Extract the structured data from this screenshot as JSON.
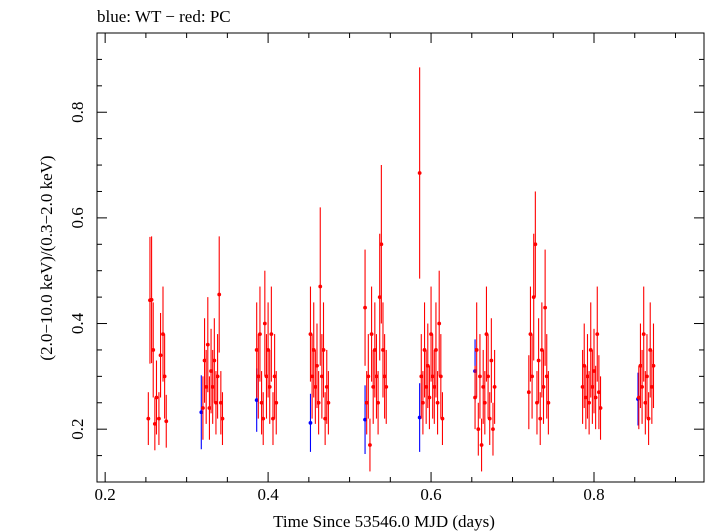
{
  "chart_data": {
    "type": "scatter",
    "title": "blue: WT − red: PC",
    "xlabel": "Time Since 53546.0 MJD (days)",
    "ylabel": "(2.0−10.0 keV)/(0.3−2.0 keV)",
    "xlim": [
      0.19,
      0.935
    ],
    "ylim": [
      0.1,
      0.95
    ],
    "xticks": [
      0.2,
      0.4,
      0.6,
      0.8
    ],
    "xtick_labels": [
      "0.2",
      "0.4",
      "0.6",
      "0.8"
    ],
    "yticks": [
      0.2,
      0.4,
      0.6,
      0.8
    ],
    "ytick_labels": [
      "0.2",
      "0.4",
      "0.6",
      "0.8"
    ],
    "x_minor_step": 0.05,
    "y_minor_step": 0.05,
    "grid": false,
    "series": [
      {
        "color": "#0000ff",
        "points": [
          {
            "x": 0.318,
            "y": 0.232,
            "err": 0.07
          },
          {
            "x": 0.386,
            "y": 0.255,
            "err": 0.06
          },
          {
            "x": 0.452,
            "y": 0.212,
            "err": 0.055
          },
          {
            "x": 0.519,
            "y": 0.218,
            "err": 0.065
          },
          {
            "x": 0.586,
            "y": 0.222,
            "err": 0.065
          },
          {
            "x": 0.654,
            "y": 0.31,
            "err": 0.06
          },
          {
            "x": 0.854,
            "y": 0.257,
            "err": 0.05
          }
        ]
      },
      {
        "color": "#ff0000",
        "points": [
          {
            "x": 0.253,
            "y": 0.22,
            "err": 0.05
          },
          {
            "x": 0.255,
            "y": 0.444,
            "err": 0.12
          },
          {
            "x": 0.257,
            "y": 0.445,
            "err": 0.12
          },
          {
            "x": 0.259,
            "y": 0.35,
            "err": 0.09
          },
          {
            "x": 0.261,
            "y": 0.21,
            "err": 0.05
          },
          {
            "x": 0.263,
            "y": 0.26,
            "err": 0.07
          },
          {
            "x": 0.266,
            "y": 0.22,
            "err": 0.05
          },
          {
            "x": 0.268,
            "y": 0.34,
            "err": 0.08
          },
          {
            "x": 0.271,
            "y": 0.38,
            "err": 0.09
          },
          {
            "x": 0.273,
            "y": 0.3,
            "err": 0.08
          },
          {
            "x": 0.275,
            "y": 0.215,
            "err": 0.05
          },
          {
            "x": 0.32,
            "y": 0.24,
            "err": 0.06
          },
          {
            "x": 0.322,
            "y": 0.33,
            "err": 0.08
          },
          {
            "x": 0.324,
            "y": 0.28,
            "err": 0.07
          },
          {
            "x": 0.326,
            "y": 0.36,
            "err": 0.09
          },
          {
            "x": 0.328,
            "y": 0.24,
            "err": 0.06
          },
          {
            "x": 0.33,
            "y": 0.31,
            "err": 0.08
          },
          {
            "x": 0.332,
            "y": 0.28,
            "err": 0.07
          },
          {
            "x": 0.334,
            "y": 0.33,
            "err": 0.08
          },
          {
            "x": 0.336,
            "y": 0.25,
            "err": 0.06
          },
          {
            "x": 0.338,
            "y": 0.3,
            "err": 0.08
          },
          {
            "x": 0.34,
            "y": 0.455,
            "err": 0.11
          },
          {
            "x": 0.342,
            "y": 0.25,
            "err": 0.06
          },
          {
            "x": 0.344,
            "y": 0.22,
            "err": 0.05
          },
          {
            "x": 0.386,
            "y": 0.35,
            "err": 0.09
          },
          {
            "x": 0.388,
            "y": 0.3,
            "err": 0.08
          },
          {
            "x": 0.39,
            "y": 0.38,
            "err": 0.09
          },
          {
            "x": 0.392,
            "y": 0.25,
            "err": 0.06
          },
          {
            "x": 0.394,
            "y": 0.22,
            "err": 0.05
          },
          {
            "x": 0.396,
            "y": 0.4,
            "err": 0.1
          },
          {
            "x": 0.398,
            "y": 0.3,
            "err": 0.08
          },
          {
            "x": 0.4,
            "y": 0.35,
            "err": 0.09
          },
          {
            "x": 0.402,
            "y": 0.28,
            "err": 0.07
          },
          {
            "x": 0.404,
            "y": 0.38,
            "err": 0.09
          },
          {
            "x": 0.406,
            "y": 0.22,
            "err": 0.05
          },
          {
            "x": 0.408,
            "y": 0.3,
            "err": 0.08
          },
          {
            "x": 0.41,
            "y": 0.25,
            "err": 0.06
          },
          {
            "x": 0.452,
            "y": 0.38,
            "err": 0.09
          },
          {
            "x": 0.454,
            "y": 0.3,
            "err": 0.08
          },
          {
            "x": 0.456,
            "y": 0.35,
            "err": 0.09
          },
          {
            "x": 0.458,
            "y": 0.28,
            "err": 0.07
          },
          {
            "x": 0.46,
            "y": 0.32,
            "err": 0.08
          },
          {
            "x": 0.462,
            "y": 0.25,
            "err": 0.06
          },
          {
            "x": 0.464,
            "y": 0.47,
            "err": 0.15
          },
          {
            "x": 0.466,
            "y": 0.3,
            "err": 0.08
          },
          {
            "x": 0.468,
            "y": 0.35,
            "err": 0.09
          },
          {
            "x": 0.47,
            "y": 0.22,
            "err": 0.05
          },
          {
            "x": 0.472,
            "y": 0.28,
            "err": 0.07
          },
          {
            "x": 0.474,
            "y": 0.25,
            "err": 0.06
          },
          {
            "x": 0.519,
            "y": 0.43,
            "err": 0.11
          },
          {
            "x": 0.521,
            "y": 0.25,
            "err": 0.06
          },
          {
            "x": 0.523,
            "y": 0.3,
            "err": 0.08
          },
          {
            "x": 0.525,
            "y": 0.17,
            "err": 0.05
          },
          {
            "x": 0.527,
            "y": 0.38,
            "err": 0.09
          },
          {
            "x": 0.529,
            "y": 0.28,
            "err": 0.07
          },
          {
            "x": 0.531,
            "y": 0.35,
            "err": 0.09
          },
          {
            "x": 0.533,
            "y": 0.3,
            "err": 0.08
          },
          {
            "x": 0.535,
            "y": 0.25,
            "err": 0.06
          },
          {
            "x": 0.537,
            "y": 0.45,
            "err": 0.12
          },
          {
            "x": 0.539,
            "y": 0.55,
            "err": 0.15
          },
          {
            "x": 0.541,
            "y": 0.35,
            "err": 0.09
          },
          {
            "x": 0.543,
            "y": 0.3,
            "err": 0.08
          },
          {
            "x": 0.545,
            "y": 0.28,
            "err": 0.07
          },
          {
            "x": 0.586,
            "y": 0.685,
            "err": 0.2
          },
          {
            "x": 0.588,
            "y": 0.3,
            "err": 0.08
          },
          {
            "x": 0.59,
            "y": 0.25,
            "err": 0.06
          },
          {
            "x": 0.592,
            "y": 0.35,
            "err": 0.09
          },
          {
            "x": 0.594,
            "y": 0.28,
            "err": 0.07
          },
          {
            "x": 0.596,
            "y": 0.32,
            "err": 0.08
          },
          {
            "x": 0.598,
            "y": 0.26,
            "err": 0.06
          },
          {
            "x": 0.6,
            "y": 0.38,
            "err": 0.09
          },
          {
            "x": 0.602,
            "y": 0.3,
            "err": 0.08
          },
          {
            "x": 0.604,
            "y": 0.28,
            "err": 0.07
          },
          {
            "x": 0.606,
            "y": 0.35,
            "err": 0.09
          },
          {
            "x": 0.608,
            "y": 0.25,
            "err": 0.06
          },
          {
            "x": 0.61,
            "y": 0.4,
            "err": 0.1
          },
          {
            "x": 0.612,
            "y": 0.3,
            "err": 0.08
          },
          {
            "x": 0.614,
            "y": 0.22,
            "err": 0.05
          },
          {
            "x": 0.654,
            "y": 0.26,
            "err": 0.06
          },
          {
            "x": 0.656,
            "y": 0.35,
            "err": 0.09
          },
          {
            "x": 0.658,
            "y": 0.2,
            "err": 0.05
          },
          {
            "x": 0.66,
            "y": 0.3,
            "err": 0.08
          },
          {
            "x": 0.662,
            "y": 0.17,
            "err": 0.05
          },
          {
            "x": 0.664,
            "y": 0.28,
            "err": 0.07
          },
          {
            "x": 0.666,
            "y": 0.25,
            "err": 0.06
          },
          {
            "x": 0.668,
            "y": 0.38,
            "err": 0.09
          },
          {
            "x": 0.67,
            "y": 0.3,
            "err": 0.08
          },
          {
            "x": 0.672,
            "y": 0.22,
            "err": 0.05
          },
          {
            "x": 0.674,
            "y": 0.33,
            "err": 0.08
          },
          {
            "x": 0.676,
            "y": 0.2,
            "err": 0.05
          },
          {
            "x": 0.678,
            "y": 0.28,
            "err": 0.07
          },
          {
            "x": 0.72,
            "y": 0.27,
            "err": 0.07
          },
          {
            "x": 0.722,
            "y": 0.38,
            "err": 0.09
          },
          {
            "x": 0.724,
            "y": 0.3,
            "err": 0.08
          },
          {
            "x": 0.726,
            "y": 0.45,
            "err": 0.12
          },
          {
            "x": 0.728,
            "y": 0.55,
            "err": 0.1
          },
          {
            "x": 0.73,
            "y": 0.25,
            "err": 0.06
          },
          {
            "x": 0.732,
            "y": 0.33,
            "err": 0.08
          },
          {
            "x": 0.734,
            "y": 0.22,
            "err": 0.05
          },
          {
            "x": 0.736,
            "y": 0.35,
            "err": 0.09
          },
          {
            "x": 0.738,
            "y": 0.28,
            "err": 0.07
          },
          {
            "x": 0.74,
            "y": 0.43,
            "err": 0.11
          },
          {
            "x": 0.742,
            "y": 0.3,
            "err": 0.08
          },
          {
            "x": 0.744,
            "y": 0.25,
            "err": 0.06
          },
          {
            "x": 0.786,
            "y": 0.28,
            "err": 0.07
          },
          {
            "x": 0.788,
            "y": 0.32,
            "err": 0.08
          },
          {
            "x": 0.79,
            "y": 0.26,
            "err": 0.06
          },
          {
            "x": 0.792,
            "y": 0.3,
            "err": 0.08
          },
          {
            "x": 0.794,
            "y": 0.25,
            "err": 0.06
          },
          {
            "x": 0.796,
            "y": 0.35,
            "err": 0.09
          },
          {
            "x": 0.798,
            "y": 0.28,
            "err": 0.07
          },
          {
            "x": 0.8,
            "y": 0.31,
            "err": 0.08
          },
          {
            "x": 0.802,
            "y": 0.26,
            "err": 0.06
          },
          {
            "x": 0.804,
            "y": 0.38,
            "err": 0.09
          },
          {
            "x": 0.806,
            "y": 0.27,
            "err": 0.07
          },
          {
            "x": 0.808,
            "y": 0.24,
            "err": 0.06
          },
          {
            "x": 0.855,
            "y": 0.26,
            "err": 0.06
          },
          {
            "x": 0.857,
            "y": 0.32,
            "err": 0.08
          },
          {
            "x": 0.859,
            "y": 0.28,
            "err": 0.07
          },
          {
            "x": 0.861,
            "y": 0.38,
            "err": 0.09
          },
          {
            "x": 0.863,
            "y": 0.25,
            "err": 0.06
          },
          {
            "x": 0.865,
            "y": 0.3,
            "err": 0.08
          },
          {
            "x": 0.867,
            "y": 0.22,
            "err": 0.05
          },
          {
            "x": 0.869,
            "y": 0.35,
            "err": 0.09
          },
          {
            "x": 0.871,
            "y": 0.28,
            "err": 0.07
          },
          {
            "x": 0.873,
            "y": 0.32,
            "err": 0.08
          }
        ]
      }
    ]
  }
}
